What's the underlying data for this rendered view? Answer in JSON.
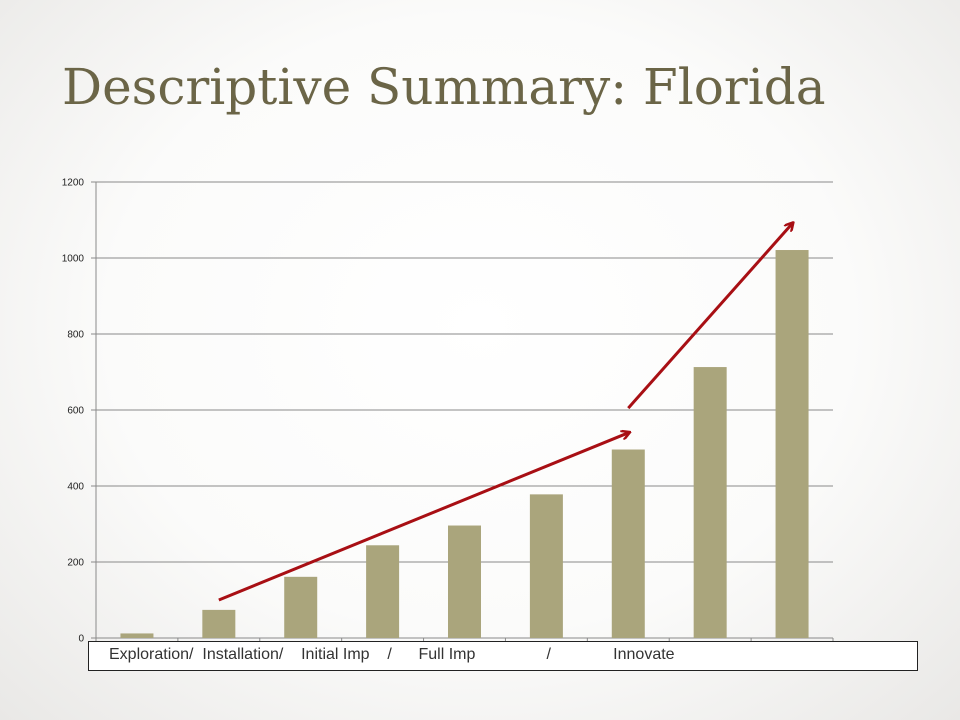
{
  "slide": {
    "title": "Descriptive Summary: Florida"
  },
  "caption": "Exploration/  Installation/    Initial Imp    /      Full Imp                /              Innovate",
  "colors": {
    "bar": "#aaa57c",
    "arrow": "#a80f14",
    "title": "#6b6547"
  },
  "chart_data": {
    "type": "bar",
    "title": "",
    "xlabel": "",
    "ylabel": "",
    "categories": [
      "",
      "",
      "",
      "",
      "",
      "",
      "",
      "",
      ""
    ],
    "values": [
      12,
      74,
      161,
      244,
      296,
      378,
      496,
      713,
      1021
    ],
    "ylim": [
      0,
      1200
    ],
    "yticks": [
      0,
      200,
      400,
      600,
      800,
      1000,
      1200
    ],
    "grid": true,
    "legend": "none",
    "annotations": [
      {
        "type": "arrow",
        "from": {
          "bar_index": 1,
          "y": 100
        },
        "to": {
          "bar_index": 6,
          "y": 540
        }
      },
      {
        "type": "arrow",
        "from": {
          "bar_index": 6,
          "y": 605
        },
        "to": {
          "bar_index": 8,
          "y": 1090
        }
      }
    ]
  }
}
